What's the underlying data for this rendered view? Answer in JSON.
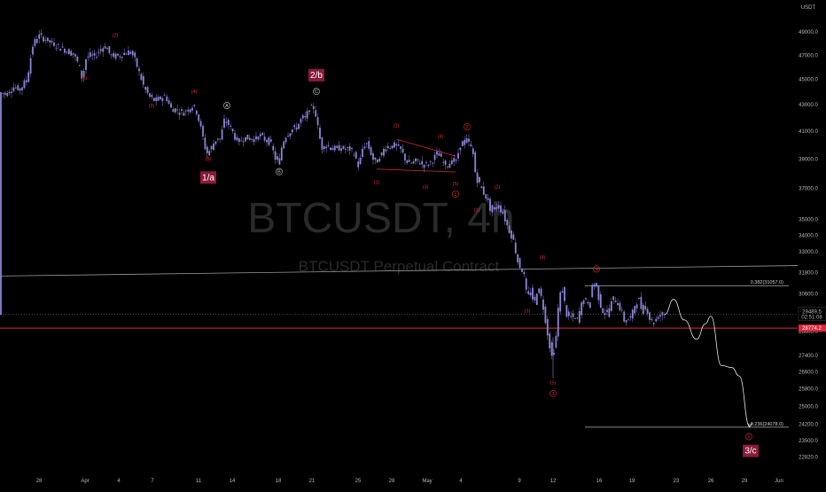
{
  "watermark": {
    "symbol": "BTCUSDT, 4h",
    "description": "BTCUSDT Perpetual Contract"
  },
  "colors": {
    "background": "#000000",
    "candles": "#8b85d6",
    "wave_label": "#e0283c",
    "degree_box": "#8a1a3a",
    "current_line": "#e0283c",
    "trendline": "#9a9a9a"
  },
  "chart_data": {
    "type": "candlestick",
    "currency_label": "USDT",
    "y_log_scale": true,
    "ylim": [
      22300,
      51500
    ],
    "y_ticks": [
      {
        "v": 49000,
        "label": "49000.0"
      },
      {
        "v": 47000,
        "label": "47000.0"
      },
      {
        "v": 45000,
        "label": "45000.0"
      },
      {
        "v": 43000,
        "label": "43000.0"
      },
      {
        "v": 41000,
        "label": "41000.0"
      },
      {
        "v": 39000,
        "label": "39000.0"
      },
      {
        "v": 37000,
        "label": "37000.0"
      },
      {
        "v": 35000,
        "label": "35000.0"
      },
      {
        "v": 34000,
        "label": "34000.0"
      },
      {
        "v": 33000,
        "label": "33000.0"
      },
      {
        "v": 31800,
        "label": "31800.0"
      },
      {
        "v": 30600,
        "label": "30600.0"
      },
      {
        "v": 28600,
        "label": "28600.0"
      },
      {
        "v": 27400,
        "label": "27400.0"
      },
      {
        "v": 26600,
        "label": "26600.0"
      },
      {
        "v": 25800,
        "label": "25800.0"
      },
      {
        "v": 25000,
        "label": "25000.0"
      },
      {
        "v": 24200,
        "label": "24200.0"
      },
      {
        "v": 23500,
        "label": "23500.0"
      },
      {
        "v": 22820,
        "label": "22820.0"
      }
    ],
    "x_ticks": [
      "28",
      "Apr",
      "4",
      "7",
      "11",
      "14",
      "18",
      "21",
      "25",
      "28",
      "May",
      "4",
      "9",
      "12",
      "16",
      "19",
      "23",
      "26",
      "29",
      "Jun"
    ],
    "current_price": {
      "value": 29489.5,
      "label": "29489.5",
      "countdown": "02:51:08"
    },
    "horizontal_level": {
      "value": 28774.2,
      "label": "28774.2"
    },
    "fib_levels": [
      {
        "ratio": 0.382,
        "value": 31057.0,
        "label": "0.382(31057.0)"
      },
      {
        "ratio": -0.236,
        "value": 24078.0,
        "label": "-0.236(24078.0)"
      }
    ],
    "price_path": [
      [
        0,
        44000
      ],
      [
        8,
        43800
      ],
      [
        16,
        44400
      ],
      [
        24,
        44200
      ],
      [
        32,
        45100
      ],
      [
        38,
        47800
      ],
      [
        44,
        48700
      ],
      [
        52,
        48400
      ],
      [
        60,
        48000
      ],
      [
        68,
        47700
      ],
      [
        76,
        47400
      ],
      [
        84,
        47100
      ],
      [
        90,
        46200
      ],
      [
        94,
        45000
      ],
      [
        98,
        46700
      ],
      [
        102,
        47000
      ],
      [
        108,
        46900
      ],
      [
        114,
        47500
      ],
      [
        120,
        47800
      ],
      [
        126,
        47000
      ],
      [
        132,
        46900
      ],
      [
        138,
        47000
      ],
      [
        142,
        47200
      ],
      [
        148,
        47300
      ],
      [
        152,
        46900
      ],
      [
        158,
        45600
      ],
      [
        164,
        44300
      ],
      [
        170,
        43600
      ],
      [
        176,
        43300
      ],
      [
        182,
        43500
      ],
      [
        188,
        43700
      ],
      [
        194,
        42700
      ],
      [
        200,
        42600
      ],
      [
        206,
        42400
      ],
      [
        212,
        42600
      ],
      [
        218,
        42900
      ],
      [
        222,
        42700
      ],
      [
        226,
        41700
      ],
      [
        230,
        40600
      ],
      [
        234,
        39400
      ],
      [
        238,
        39600
      ],
      [
        242,
        40100
      ],
      [
        246,
        40500
      ],
      [
        250,
        40400
      ],
      [
        254,
        41800
      ],
      [
        258,
        41600
      ],
      [
        262,
        41200
      ],
      [
        266,
        40600
      ],
      [
        270,
        40200
      ],
      [
        276,
        40500
      ],
      [
        282,
        40500
      ],
      [
        288,
        40400
      ],
      [
        294,
        40700
      ],
      [
        300,
        40400
      ],
      [
        306,
        40200
      ],
      [
        312,
        39000
      ],
      [
        316,
        38700
      ],
      [
        320,
        40200
      ],
      [
        324,
        40700
      ],
      [
        330,
        41100
      ],
      [
        336,
        41300
      ],
      [
        342,
        42000
      ],
      [
        346,
        42000
      ],
      [
        350,
        42700
      ],
      [
        356,
        42800
      ],
      [
        360,
        41200
      ],
      [
        364,
        39800
      ],
      [
        368,
        40000
      ],
      [
        372,
        39900
      ],
      [
        378,
        39700
      ],
      [
        384,
        39800
      ],
      [
        390,
        39700
      ],
      [
        396,
        39700
      ],
      [
        402,
        39200
      ],
      [
        406,
        38400
      ],
      [
        410,
        39700
      ],
      [
        414,
        40200
      ],
      [
        418,
        39700
      ],
      [
        424,
        38700
      ],
      [
        430,
        39100
      ],
      [
        436,
        39900
      ],
      [
        442,
        39900
      ],
      [
        448,
        40000
      ],
      [
        454,
        39600
      ],
      [
        460,
        38800
      ],
      [
        466,
        38700
      ],
      [
        472,
        38900
      ],
      [
        478,
        38600
      ],
      [
        484,
        38600
      ],
      [
        490,
        39000
      ],
      [
        496,
        39500
      ],
      [
        500,
        38800
      ],
      [
        506,
        38600
      ],
      [
        512,
        38900
      ],
      [
        516,
        38800
      ],
      [
        520,
        40000
      ],
      [
        524,
        40200
      ],
      [
        528,
        40300
      ],
      [
        534,
        39800
      ],
      [
        538,
        37800
      ],
      [
        542,
        37300
      ],
      [
        546,
        36800
      ],
      [
        550,
        36400
      ],
      [
        556,
        35400
      ],
      [
        562,
        35900
      ],
      [
        568,
        35500
      ],
      [
        574,
        34500
      ],
      [
        580,
        33800
      ],
      [
        586,
        32300
      ],
      [
        592,
        31800
      ],
      [
        596,
        30300
      ],
      [
        600,
        30800
      ],
      [
        604,
        30000
      ],
      [
        608,
        31000
      ],
      [
        612,
        30400
      ],
      [
        616,
        29400
      ],
      [
        620,
        28200
      ],
      [
        624,
        27300
      ],
      [
        628,
        28000
      ],
      [
        632,
        30400
      ],
      [
        636,
        30900
      ],
      [
        640,
        29500
      ],
      [
        644,
        29300
      ],
      [
        648,
        29400
      ],
      [
        652,
        29100
      ],
      [
        656,
        29800
      ],
      [
        660,
        30400
      ],
      [
        666,
        29900
      ],
      [
        670,
        31300
      ],
      [
        674,
        31000
      ],
      [
        678,
        30100
      ],
      [
        682,
        29600
      ],
      [
        686,
        29500
      ],
      [
        690,
        30000
      ],
      [
        694,
        30400
      ],
      [
        698,
        30100
      ],
      [
        702,
        29700
      ],
      [
        706,
        29100
      ],
      [
        710,
        29200
      ],
      [
        714,
        29400
      ],
      [
        718,
        30100
      ],
      [
        722,
        30300
      ],
      [
        726,
        29600
      ],
      [
        730,
        30000
      ],
      [
        734,
        29300
      ],
      [
        738,
        29000
      ],
      [
        742,
        29300
      ],
      [
        746,
        29500
      ],
      [
        750,
        29489.5
      ]
    ],
    "projection_path": [
      [
        750,
        29489.5
      ],
      [
        760,
        30300
      ],
      [
        772,
        29200
      ],
      [
        786,
        28200
      ],
      [
        796,
        29000
      ],
      [
        802,
        29400
      ],
      [
        814,
        26900
      ],
      [
        826,
        26800
      ],
      [
        834,
        26400
      ],
      [
        846,
        24100
      ]
    ],
    "wave_labels": [
      {
        "text": "(1)",
        "x": 95,
        "y": 45000,
        "tone": "red"
      },
      {
        "text": "(2)",
        "x": 130,
        "y": 48600,
        "tone": "red"
      },
      {
        "text": "(3)",
        "x": 171,
        "y": 42800,
        "tone": "red"
      },
      {
        "text": "(4)",
        "x": 219,
        "y": 43900,
        "tone": "red"
      },
      {
        "text": "(5)",
        "x": 235,
        "y": 38900,
        "tone": "red"
      },
      {
        "text": "A",
        "x": 256,
        "y": 42800,
        "tone": "grey",
        "circle": true
      },
      {
        "text": "B",
        "x": 315,
        "y": 38000,
        "tone": "grey",
        "circle": true
      },
      {
        "text": "C",
        "x": 357,
        "y": 43900,
        "tone": "grey",
        "circle": true
      },
      {
        "text": "(2)",
        "x": 447,
        "y": 41300,
        "tone": "red"
      },
      {
        "text": "(4)",
        "x": 497,
        "y": 40500,
        "tone": "red"
      },
      {
        "text": "(1)",
        "x": 425,
        "y": 37300,
        "tone": "red"
      },
      {
        "text": "(3)",
        "x": 480,
        "y": 37000,
        "tone": "red"
      },
      {
        "text": "(5)",
        "x": 514,
        "y": 37200,
        "tone": "red"
      },
      {
        "text": "1",
        "x": 514,
        "y": 36500,
        "tone": "red",
        "circle": true
      },
      {
        "text": "2",
        "x": 527,
        "y": 41200,
        "tone": "red",
        "circle": true
      },
      {
        "text": "(2)",
        "x": 561,
        "y": 37000,
        "tone": "red"
      },
      {
        "text": "(1)",
        "x": 538,
        "y": 35500,
        "tone": "red"
      },
      {
        "text": "(4)",
        "x": 612,
        "y": 32600,
        "tone": "red"
      },
      {
        "text": "(3)",
        "x": 595,
        "y": 29600,
        "tone": "red"
      },
      {
        "text": "(5)",
        "x": 624,
        "y": 26000,
        "tone": "red"
      },
      {
        "text": "3",
        "x": 624,
        "y": 25500,
        "tone": "red",
        "circle": true
      },
      {
        "text": "4",
        "x": 673,
        "y": 31900,
        "tone": "red",
        "circle": true
      },
      {
        "text": "5",
        "x": 845,
        "y": 23600,
        "tone": "red",
        "circle": true
      }
    ],
    "degree_labels": [
      {
        "text": "1/a",
        "x": 235,
        "y": 37600
      },
      {
        "text": "2/b",
        "x": 357,
        "y": 45200
      },
      {
        "text": "3/c",
        "x": 847,
        "y": 23000
      }
    ],
    "red_wedge": {
      "upper": [
        [
          448,
          40400
        ],
        [
          514,
          39200
        ]
      ],
      "lower": [
        [
          425,
          38300
        ],
        [
          514,
          38100
        ]
      ]
    },
    "trendline": {
      "from": [
        0,
        31600
      ],
      "to": [
        900,
        32200
      ]
    }
  }
}
